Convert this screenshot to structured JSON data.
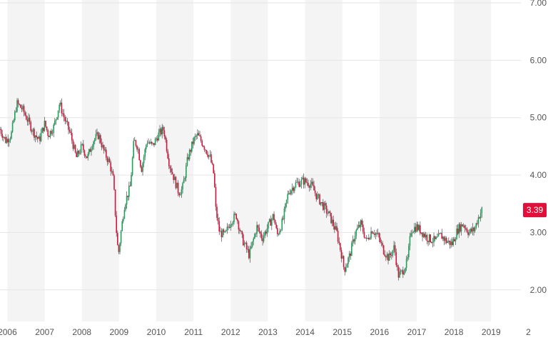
{
  "chart_data": {
    "type": "candlestick",
    "title": "",
    "xlabel": "",
    "ylabel": "",
    "x_range": [
      2005.8,
      2019.8
    ],
    "ylim": [
      1.45,
      7.05
    ],
    "y_ticks": [
      "2.00",
      "3.00",
      "4.00",
      "5.00",
      "6.00",
      "7.00"
    ],
    "x_ticks": [
      "2006",
      "2007",
      "2008",
      "2009",
      "2010",
      "2011",
      "2012",
      "2013",
      "2014",
      "2015",
      "2016",
      "2017",
      "2018",
      "2019",
      "2"
    ],
    "shaded_years": [
      2006,
      2008,
      2010,
      2012,
      2014,
      2016,
      2018
    ],
    "grid": true,
    "colors": {
      "up": "#1aa35a",
      "down": "#d6143c",
      "last_label_bg": "#e0103a",
      "band": "#f4f4f4",
      "grid": "#e6e6e6"
    },
    "last_price": "3.39",
    "price_path": [
      [
        2005.8,
        4.8
      ],
      [
        2005.95,
        4.6
      ],
      [
        2006.1,
        4.7
      ],
      [
        2006.25,
        5.25
      ],
      [
        2006.4,
        5.15
      ],
      [
        2006.55,
        4.95
      ],
      [
        2006.7,
        4.75
      ],
      [
        2006.85,
        4.6
      ],
      [
        2007.0,
        4.9
      ],
      [
        2007.1,
        4.7
      ],
      [
        2007.25,
        4.85
      ],
      [
        2007.4,
        5.25
      ],
      [
        2007.55,
        4.95
      ],
      [
        2007.7,
        4.7
      ],
      [
        2007.85,
        4.3
      ],
      [
        2008.0,
        4.5
      ],
      [
        2008.15,
        4.3
      ],
      [
        2008.3,
        4.6
      ],
      [
        2008.45,
        4.7
      ],
      [
        2008.6,
        4.4
      ],
      [
        2008.75,
        4.2
      ],
      [
        2008.85,
        3.9
      ],
      [
        2008.92,
        3.1
      ],
      [
        2008.98,
        2.6
      ],
      [
        2009.05,
        3.0
      ],
      [
        2009.15,
        3.5
      ],
      [
        2009.3,
        3.8
      ],
      [
        2009.4,
        4.6
      ],
      [
        2009.5,
        4.5
      ],
      [
        2009.6,
        4.1
      ],
      [
        2009.75,
        4.6
      ],
      [
        2009.9,
        4.5
      ],
      [
        2010.05,
        4.7
      ],
      [
        2010.2,
        4.8
      ],
      [
        2010.35,
        4.2
      ],
      [
        2010.5,
        3.9
      ],
      [
        2010.6,
        3.7
      ],
      [
        2010.7,
        3.75
      ],
      [
        2010.85,
        4.3
      ],
      [
        2011.0,
        4.6
      ],
      [
        2011.1,
        4.7
      ],
      [
        2011.25,
        4.55
      ],
      [
        2011.45,
        4.3
      ],
      [
        2011.55,
        4.0
      ],
      [
        2011.6,
        3.4
      ],
      [
        2011.7,
        3.0
      ],
      [
        2011.85,
        2.95
      ],
      [
        2012.0,
        3.2
      ],
      [
        2012.15,
        3.3
      ],
      [
        2012.3,
        2.9
      ],
      [
        2012.5,
        2.6
      ],
      [
        2012.7,
        3.1
      ],
      [
        2012.85,
        2.9
      ],
      [
        2013.0,
        3.1
      ],
      [
        2013.15,
        3.3
      ],
      [
        2013.25,
        2.95
      ],
      [
        2013.4,
        3.2
      ],
      [
        2013.55,
        3.7
      ],
      [
        2013.75,
        3.85
      ],
      [
        2013.95,
        3.9
      ],
      [
        2014.15,
        3.85
      ],
      [
        2014.3,
        3.65
      ],
      [
        2014.5,
        3.45
      ],
      [
        2014.65,
        3.3
      ],
      [
        2014.85,
        3.0
      ],
      [
        2015.0,
        2.55
      ],
      [
        2015.05,
        2.35
      ],
      [
        2015.2,
        2.6
      ],
      [
        2015.35,
        3.0
      ],
      [
        2015.5,
        3.15
      ],
      [
        2015.65,
        2.85
      ],
      [
        2015.8,
        3.05
      ],
      [
        2015.95,
        2.95
      ],
      [
        2016.1,
        2.7
      ],
      [
        2016.25,
        2.55
      ],
      [
        2016.4,
        2.75
      ],
      [
        2016.5,
        2.25
      ],
      [
        2016.6,
        2.3
      ],
      [
        2016.75,
        2.5
      ],
      [
        2016.85,
        3.05
      ],
      [
        2017.0,
        3.1
      ],
      [
        2017.15,
        3.0
      ],
      [
        2017.3,
        2.9
      ],
      [
        2017.5,
        2.85
      ],
      [
        2017.65,
        2.95
      ],
      [
        2017.8,
        2.85
      ],
      [
        2017.95,
        2.8
      ],
      [
        2018.1,
        3.05
      ],
      [
        2018.25,
        3.15
      ],
      [
        2018.4,
        3.0
      ],
      [
        2018.55,
        3.05
      ],
      [
        2018.65,
        3.25
      ],
      [
        2018.75,
        3.39
      ]
    ]
  }
}
